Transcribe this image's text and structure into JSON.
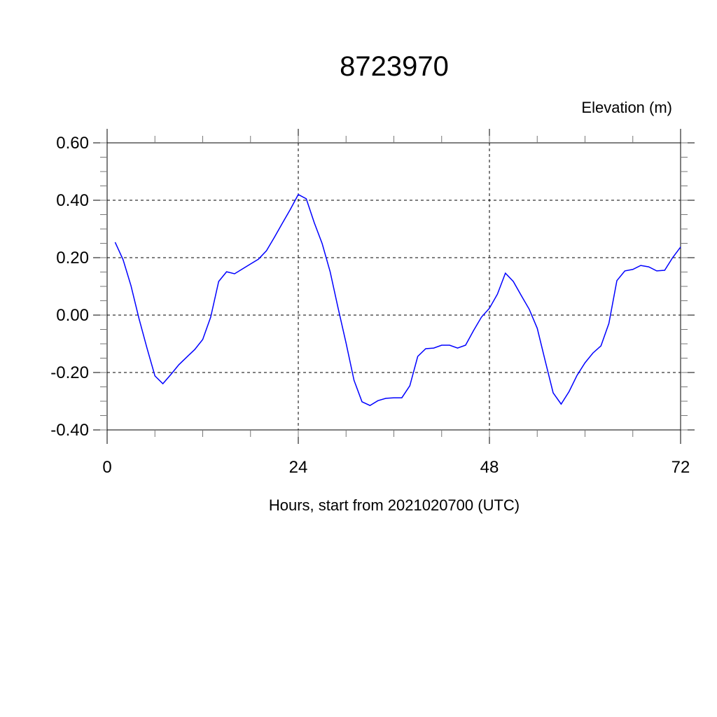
{
  "chart_data": {
    "type": "line",
    "title": "8723970",
    "ylabel": "Elevation (m)",
    "xlabel": "Hours, start from 2021020700 (UTC)",
    "xlim": [
      0,
      72
    ],
    "ylim": [
      -0.4,
      0.6
    ],
    "x_ticks": [
      0,
      24,
      48,
      72
    ],
    "x_tick_labels": [
      "0",
      "24",
      "48",
      "72"
    ],
    "y_ticks": [
      -0.4,
      -0.2,
      0.0,
      0.2,
      0.4,
      0.6
    ],
    "y_tick_labels": [
      "-0.40",
      "-0.20",
      "0.00",
      "0.20",
      "0.40",
      "0.60"
    ],
    "grid": true,
    "series": [
      {
        "color": "#0000ff",
        "x": [
          1,
          2,
          3,
          4,
          5,
          6,
          7,
          8,
          9,
          10,
          11,
          12,
          13,
          14,
          15,
          16,
          17,
          18,
          19,
          20,
          21,
          22,
          23,
          24,
          25,
          26,
          27,
          28,
          29,
          30,
          31,
          32,
          33,
          34,
          35,
          36,
          37,
          38,
          39,
          40,
          41,
          42,
          43,
          44,
          45,
          46,
          47,
          48,
          49,
          50,
          51,
          52,
          53,
          54,
          55,
          56,
          57,
          58,
          59,
          60,
          61,
          62,
          63,
          64,
          65,
          66,
          67,
          68,
          69,
          70,
          71,
          72
        ],
        "y": [
          0.254,
          0.193,
          0.102,
          -0.012,
          -0.115,
          -0.212,
          -0.239,
          -0.207,
          -0.173,
          -0.146,
          -0.12,
          -0.085,
          -0.007,
          0.117,
          0.151,
          0.144,
          0.161,
          0.178,
          0.195,
          0.224,
          0.271,
          0.32,
          0.368,
          0.42,
          0.405,
          0.322,
          0.249,
          0.151,
          0.024,
          -0.098,
          -0.227,
          -0.302,
          -0.315,
          -0.298,
          -0.29,
          -0.288,
          -0.288,
          -0.246,
          -0.144,
          -0.117,
          -0.115,
          -0.105,
          -0.105,
          -0.115,
          -0.105,
          -0.054,
          -0.007,
          0.024,
          0.073,
          0.146,
          0.117,
          0.068,
          0.02,
          -0.046,
          -0.159,
          -0.271,
          -0.31,
          -0.266,
          -0.21,
          -0.166,
          -0.132,
          -0.107,
          -0.029,
          0.12,
          0.154,
          0.159,
          0.173,
          0.168,
          0.154,
          0.156,
          0.2,
          0.237
        ]
      }
    ]
  }
}
